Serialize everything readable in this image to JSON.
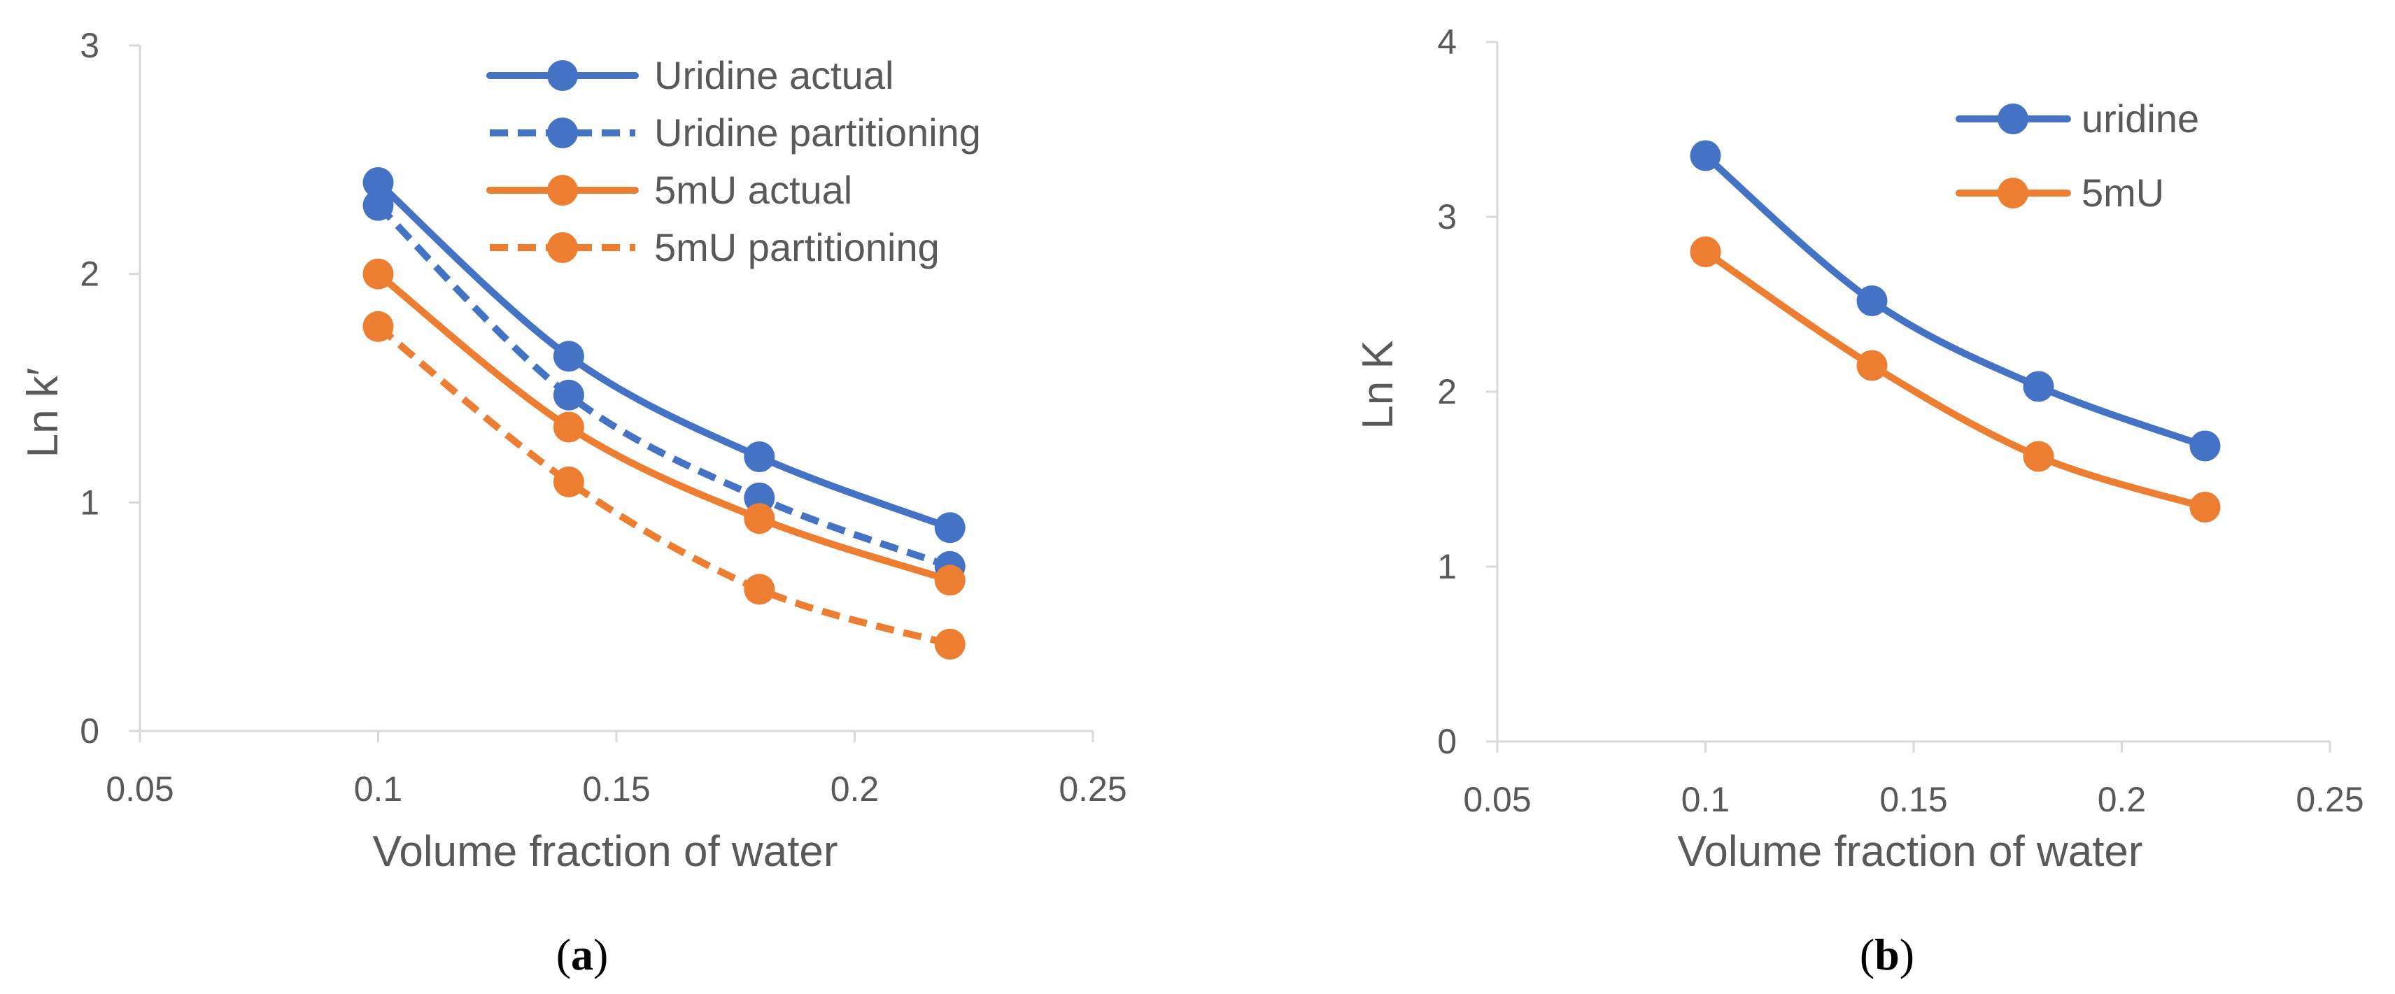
{
  "colors": {
    "blue": "#4472C4",
    "orange": "#ED7D31",
    "axis": "#D9D9D9",
    "text": "#595959"
  },
  "chart_data": [
    {
      "type": "line",
      "panel_label": {
        "open": "(",
        "letter": "a",
        "close": ")"
      },
      "xlabel": "Volume fraction of water",
      "ylabel": "Ln k′",
      "xlim": [
        0.05,
        0.25
      ],
      "ylim": [
        0,
        3
      ],
      "xticks": [
        0.05,
        0.1,
        0.15,
        0.2,
        0.25
      ],
      "xtick_labels": [
        "0.05",
        "0.1",
        "0.15",
        "0.2",
        "0.25"
      ],
      "yticks": [
        0,
        1,
        2,
        3
      ],
      "ytick_labels": [
        "0",
        "1",
        "2",
        "3"
      ],
      "grid": false,
      "legend_position": "top-right",
      "series": [
        {
          "name": "Uridine actual",
          "color": "blue",
          "dashed": false,
          "x": [
            0.1,
            0.14,
            0.18,
            0.22
          ],
          "y": [
            2.4,
            1.64,
            1.2,
            0.89
          ]
        },
        {
          "name": "Uridine partitioning",
          "color": "blue",
          "dashed": true,
          "x": [
            0.1,
            0.14,
            0.18,
            0.22
          ],
          "y": [
            2.3,
            1.47,
            1.02,
            0.72
          ]
        },
        {
          "name": "5mU actual",
          "color": "orange",
          "dashed": false,
          "x": [
            0.1,
            0.14,
            0.18,
            0.22
          ],
          "y": [
            2.0,
            1.33,
            0.93,
            0.66
          ]
        },
        {
          "name": "5mU partitioning",
          "color": "orange",
          "dashed": true,
          "x": [
            0.1,
            0.14,
            0.18,
            0.22
          ],
          "y": [
            1.77,
            1.09,
            0.62,
            0.38
          ]
        }
      ]
    },
    {
      "type": "line",
      "panel_label": {
        "open": "(",
        "letter": "b",
        "close": ")"
      },
      "xlabel": "Volume fraction of water",
      "ylabel": "Ln K",
      "xlim": [
        0.05,
        0.25
      ],
      "ylim": [
        0,
        4
      ],
      "xticks": [
        0.05,
        0.1,
        0.15,
        0.2,
        0.25
      ],
      "xtick_labels": [
        "0.05",
        "0.1",
        "0.15",
        "0.2",
        "0.25"
      ],
      "yticks": [
        0,
        1,
        2,
        3,
        4
      ],
      "ytick_labels": [
        "0",
        "1",
        "2",
        "3",
        "4"
      ],
      "grid": false,
      "legend_position": "top-right",
      "series": [
        {
          "name": "uridine",
          "color": "blue",
          "dashed": false,
          "x": [
            0.1,
            0.14,
            0.18,
            0.22
          ],
          "y": [
            3.35,
            2.52,
            2.03,
            1.69
          ]
        },
        {
          "name": "5mU",
          "color": "orange",
          "dashed": false,
          "x": [
            0.1,
            0.14,
            0.18,
            0.22
          ],
          "y": [
            2.8,
            2.15,
            1.63,
            1.34
          ]
        }
      ]
    }
  ]
}
